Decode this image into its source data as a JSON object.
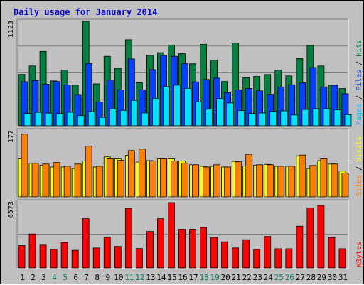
{
  "chart_data": {
    "type": "bar",
    "title": "Daily usage for January 2014",
    "categories": [
      "1",
      "2",
      "3",
      "4",
      "5",
      "6",
      "7",
      "8",
      "9",
      "10",
      "11",
      "12",
      "13",
      "14",
      "15",
      "16",
      "17",
      "18",
      "19",
      "20",
      "21",
      "22",
      "23",
      "24",
      "25",
      "26",
      "27",
      "28",
      "29",
      "30",
      "31"
    ],
    "weekend_days": [
      4,
      5,
      11,
      12,
      18,
      19,
      25,
      26
    ],
    "colors": {
      "title": "#0000cc",
      "hits": "#008040",
      "files": "#0040ff",
      "pages": "#00e0ff",
      "visits": "#ffff00",
      "sites": "#ff8000",
      "kbytes": "#ff0000",
      "weekend_label": "#00805c",
      "weekday_label": "#000000",
      "panel": "#c0c0c0"
    },
    "panels": [
      {
        "id": "hits-files-pages",
        "ymax_label": "1123",
        "ymax": 1123,
        "right_label_parts": [
          {
            "text": "Pages",
            "color": "#00c0ff"
          },
          {
            "text": " / ",
            "color": "#000000"
          },
          {
            "text": "Files",
            "color": "#0040ff"
          },
          {
            "text": " / ",
            "color": "#000000"
          },
          {
            "text": "Hits",
            "color": "#008040"
          }
        ],
        "series": [
          {
            "name": "Hits",
            "color": "#008040",
            "values": [
              552,
              643,
              800,
              482,
              600,
              437,
              1123,
              451,
              747,
              618,
              925,
              463,
              758,
              786,
              868,
              775,
              667,
              875,
              707,
              476,
              889,
              516,
              530,
              551,
              599,
              536,
              723,
              863,
              643,
              436,
              400
            ]
          },
          {
            "name": "Files",
            "color": "#0040ff",
            "values": [
              474,
              486,
              447,
              476,
              440,
              336,
              671,
              257,
              492,
              387,
              719,
              387,
              604,
              756,
              747,
              667,
              472,
              498,
              513,
              355,
              385,
              402,
              376,
              338,
              418,
              441,
              461,
              626,
              418,
              435,
              345
            ]
          },
          {
            "name": "Pages",
            "color": "#00e0ff",
            "values": [
              134,
              144,
              137,
              131,
              145,
              110,
              152,
              90,
              180,
              166,
              273,
              138,
              296,
              421,
              436,
              402,
              257,
              178,
              294,
              245,
              165,
              133,
              138,
              156,
              160,
              116,
              176,
              182,
              184,
              172,
              120
            ]
          }
        ]
      },
      {
        "id": "visits-sites",
        "ymax_label": "177",
        "ymax": 177,
        "right_label_parts": [
          {
            "text": "Sites",
            "color": "#ff8000"
          },
          {
            "text": " / ",
            "color": "#000000"
          },
          {
            "text": "Visits",
            "color": "#ffff00"
          }
        ],
        "series": [
          {
            "name": "Visits",
            "color": "#ffff00",
            "values": [
              102,
              90,
              85,
              80,
              80,
              76,
              96,
              80,
              107,
              102,
              111,
              93,
              97,
              102,
              102,
              96,
              86,
              82,
              82,
              80,
              95,
              83,
              85,
              87,
              82,
              82,
              110,
              76,
              97,
              88,
              69
            ]
          },
          {
            "name": "Sites",
            "color": "#ff8000",
            "values": [
              168,
              90,
              88,
              92,
              82,
              88,
              136,
              82,
              102,
              98,
              124,
              128,
              96,
              102,
              96,
              90,
              86,
              80,
              86,
              80,
              94,
              114,
              86,
              86,
              82,
              82,
              112,
              84,
              102,
              88,
              64
            ]
          }
        ]
      },
      {
        "id": "kbytes",
        "ymax_label": "6573",
        "ymax": 6573,
        "right_label_parts": [
          {
            "text": "KBytes",
            "color": "#ff0000"
          }
        ],
        "series": [
          {
            "name": "KBytes",
            "color": "#ff0000",
            "values": [
              2220,
              3380,
              2270,
              1850,
              2520,
              1760,
              4900,
              1990,
              3050,
              2140,
              5930,
              1930,
              3630,
              4900,
              6500,
              3850,
              3850,
              4020,
              3040,
              2600,
              1990,
              2810,
              1850,
              3130,
              1910,
              1910,
              4150,
              5980,
              6220,
              3010,
              1910
            ]
          }
        ]
      }
    ]
  }
}
